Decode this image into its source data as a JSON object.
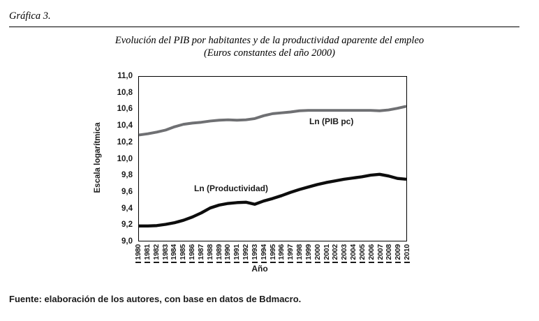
{
  "header": {
    "label": "Gráfica 3."
  },
  "footer": {
    "source": "Fuente: elaboración de los autores, con base en datos de Bdmacro."
  },
  "chart_data": {
    "type": "line",
    "title": "Evolución del PIB por habitantes y de la productividad aparente del empleo",
    "subtitle": "(Euros constantes del año 2000)",
    "xlabel": "Año",
    "ylabel": "Escala logarítmica",
    "ylim": [
      9.0,
      11.0
    ],
    "y_tick_step": 0.2,
    "y_tick_labels": [
      "11,0",
      "10,8",
      "10,6",
      "10,4",
      "10,2",
      "10,0",
      "9,8",
      "9,6",
      "9,4",
      "9,2",
      "9,0"
    ],
    "grid": false,
    "legend_position": "inline-labels",
    "categories": [
      "1980",
      "1981",
      "1982",
      "1983",
      "1984",
      "1985",
      "1986",
      "1987",
      "1988",
      "1989",
      "1990",
      "1991",
      "1992",
      "1993",
      "1994",
      "1995",
      "1996",
      "1997",
      "1998",
      "1999",
      "2000",
      "2001",
      "2002",
      "2003",
      "2004",
      "2005",
      "2006",
      "2007",
      "2008",
      "2009",
      "2010"
    ],
    "series": [
      {
        "name": "Ln (PIB pc)",
        "color": "#6f7073",
        "values": [
          10.29,
          10.305,
          10.325,
          10.35,
          10.39,
          10.42,
          10.435,
          10.445,
          10.46,
          10.47,
          10.475,
          10.47,
          10.475,
          10.49,
          10.525,
          10.55,
          10.56,
          10.57,
          10.585,
          10.59,
          10.59,
          10.59,
          10.59,
          10.59,
          10.59,
          10.59,
          10.59,
          10.585,
          10.595,
          10.615,
          10.64
        ]
      },
      {
        "name": "Ln (Productividad)",
        "color": "#0d0d0d",
        "values": [
          9.18,
          9.18,
          9.185,
          9.2,
          9.22,
          9.25,
          9.29,
          9.34,
          9.4,
          9.435,
          9.455,
          9.465,
          9.47,
          9.445,
          9.485,
          9.515,
          9.55,
          9.59,
          9.625,
          9.655,
          9.685,
          9.71,
          9.73,
          9.75,
          9.765,
          9.78,
          9.8,
          9.81,
          9.79,
          9.76,
          9.75
        ]
      }
    ]
  }
}
